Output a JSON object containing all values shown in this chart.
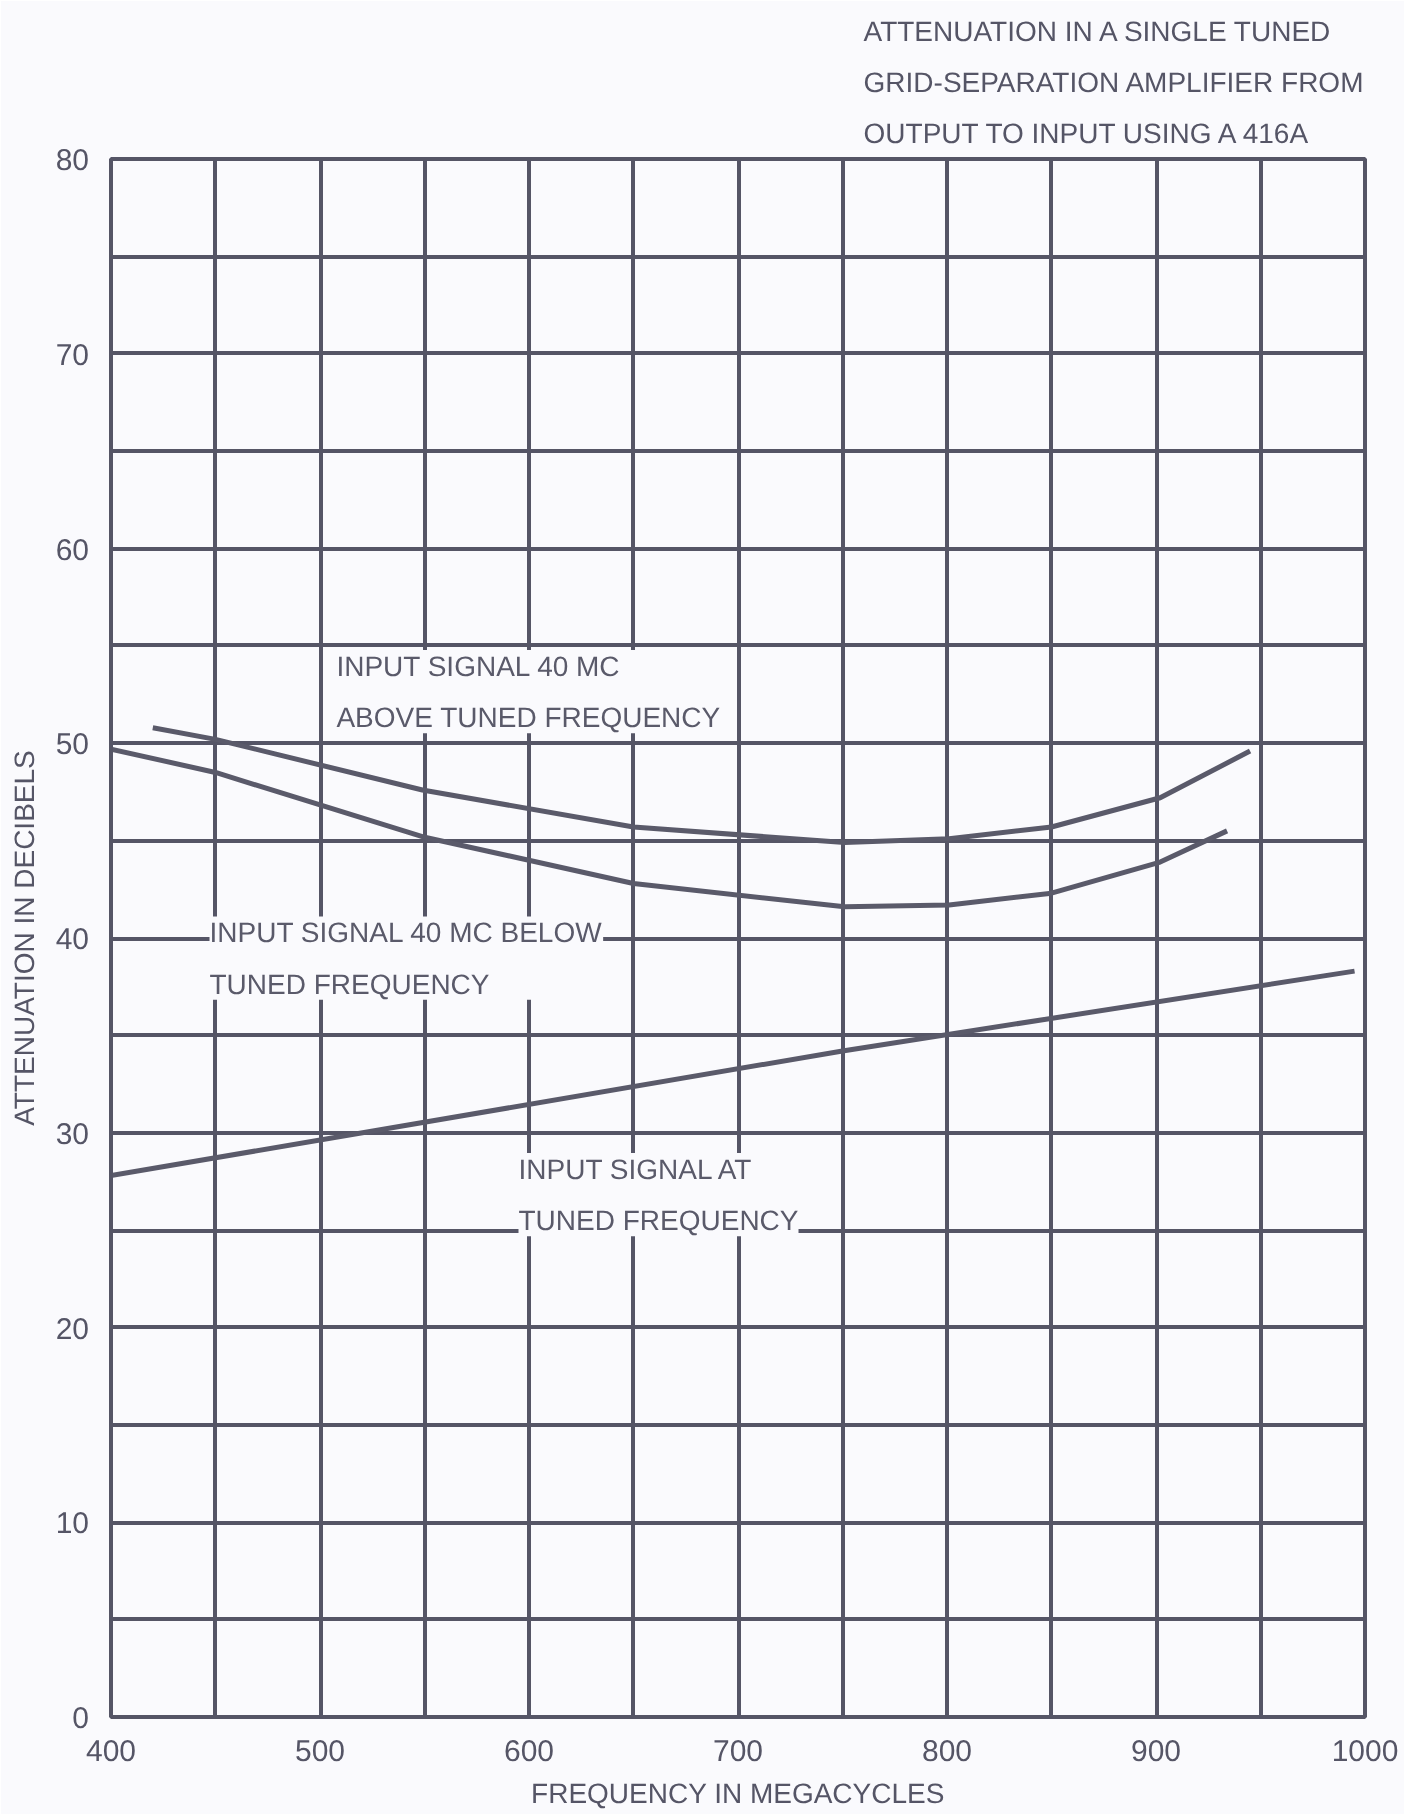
{
  "chart_data": {
    "type": "line",
    "title": "ATTENUATION IN A SINGLE TUNED\nGRID-SEPARATION AMPLIFIER FROM\nOUTPUT TO INPUT USING A 416A",
    "xlabel": "FREQUENCY IN MEGACYCLES",
    "ylabel": "ATTENUATION IN DECIBELS",
    "xlim": [
      400,
      1000
    ],
    "ylim": [
      0,
      80
    ],
    "xticks": [
      400,
      {
        "value": 450,
        "label": null
      },
      500,
      {
        "value": 550,
        "label": null
      },
      600,
      {
        "value": 650,
        "label": null
      },
      700,
      {
        "value": 750,
        "label": null
      },
      800,
      {
        "value": 850,
        "label": null
      },
      900,
      {
        "value": 950,
        "label": null
      },
      1000
    ],
    "yticks": [
      0,
      {
        "value": 5,
        "label": null
      },
      10,
      {
        "value": 15,
        "label": null
      },
      20,
      {
        "value": 25,
        "label": null
      },
      30,
      {
        "value": 35,
        "label": null
      },
      40,
      {
        "value": 45,
        "label": null
      },
      50,
      {
        "value": 55,
        "label": null
      },
      60,
      {
        "value": 65,
        "label": null
      },
      70,
      {
        "value": 75,
        "label": null
      },
      80
    ],
    "grid": true,
    "line_style": "solid",
    "marker": "none",
    "series": [
      {
        "name": "INPUT SIGNAL 40 MC\nABOVE TUNED FREQUENCY",
        "color": "#5a5a6a",
        "x": [
          420,
          450,
          549,
          650,
          751,
          801,
          850,
          902,
          945
        ],
        "values": [
          50.8,
          50.2,
          47.6,
          45.7,
          44.9,
          45.1,
          45.7,
          47.2,
          49.6
        ]
      },
      {
        "name": "INPUT SIGNAL 40 MC BELOW\nTUNED FREQUENCY",
        "color": "#5a5a6a",
        "x": [
          400,
          450,
          549,
          650,
          751,
          801,
          850,
          902,
          934
        ],
        "values": [
          49.7,
          48.5,
          45.2,
          42.8,
          41.6,
          41.7,
          42.3,
          43.9,
          45.5
        ]
      },
      {
        "name": "INPUT SIGNAL AT\nTUNED FREQUENCY",
        "color": "#5a5a6a",
        "x": [
          400,
          750,
          995
        ],
        "values": [
          27.8,
          34.2,
          38.3
        ]
      }
    ]
  }
}
